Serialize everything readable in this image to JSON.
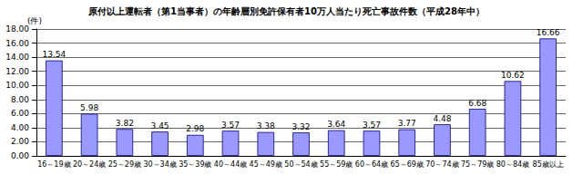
{
  "chart_data": {
    "type": "bar",
    "title": "原付以上運転者（第1当事者）の年齢層別免許保有者10万人当たり死亡事故件数（平成28年中）",
    "y_label": "(件)",
    "categories": [
      "16～19歳",
      "20～24歳",
      "25～29歳",
      "30～34歳",
      "35～39歳",
      "40～44歳",
      "45～49歳",
      "50～54歳",
      "55～59歳",
      "60～64歳",
      "65～69歳",
      "70～74歳",
      "75～79歳",
      "80～84歳",
      "85歳以上"
    ],
    "values": [
      13.54,
      5.98,
      3.82,
      3.45,
      2.98,
      3.57,
      3.38,
      3.32,
      3.64,
      3.57,
      3.77,
      4.48,
      6.68,
      10.62,
      16.66
    ],
    "color": "#9999ff",
    "ylim": [
      0,
      18
    ],
    "yticks": [
      {
        "value": 0,
        "label": "0.00"
      },
      {
        "value": 2,
        "label": "2.00"
      },
      {
        "value": 4,
        "label": "4.00"
      },
      {
        "value": 6,
        "label": "6.00"
      },
      {
        "value": 8,
        "label": "8.00"
      },
      {
        "value": 10,
        "label": "10.00"
      },
      {
        "value": 12,
        "label": "12.00"
      },
      {
        "value": 14,
        "label": "14.00"
      },
      {
        "value": 16,
        "label": "16.00"
      },
      {
        "value": 18,
        "label": "18.00"
      }
    ],
    "grid": true,
    "data_labels": true
  }
}
